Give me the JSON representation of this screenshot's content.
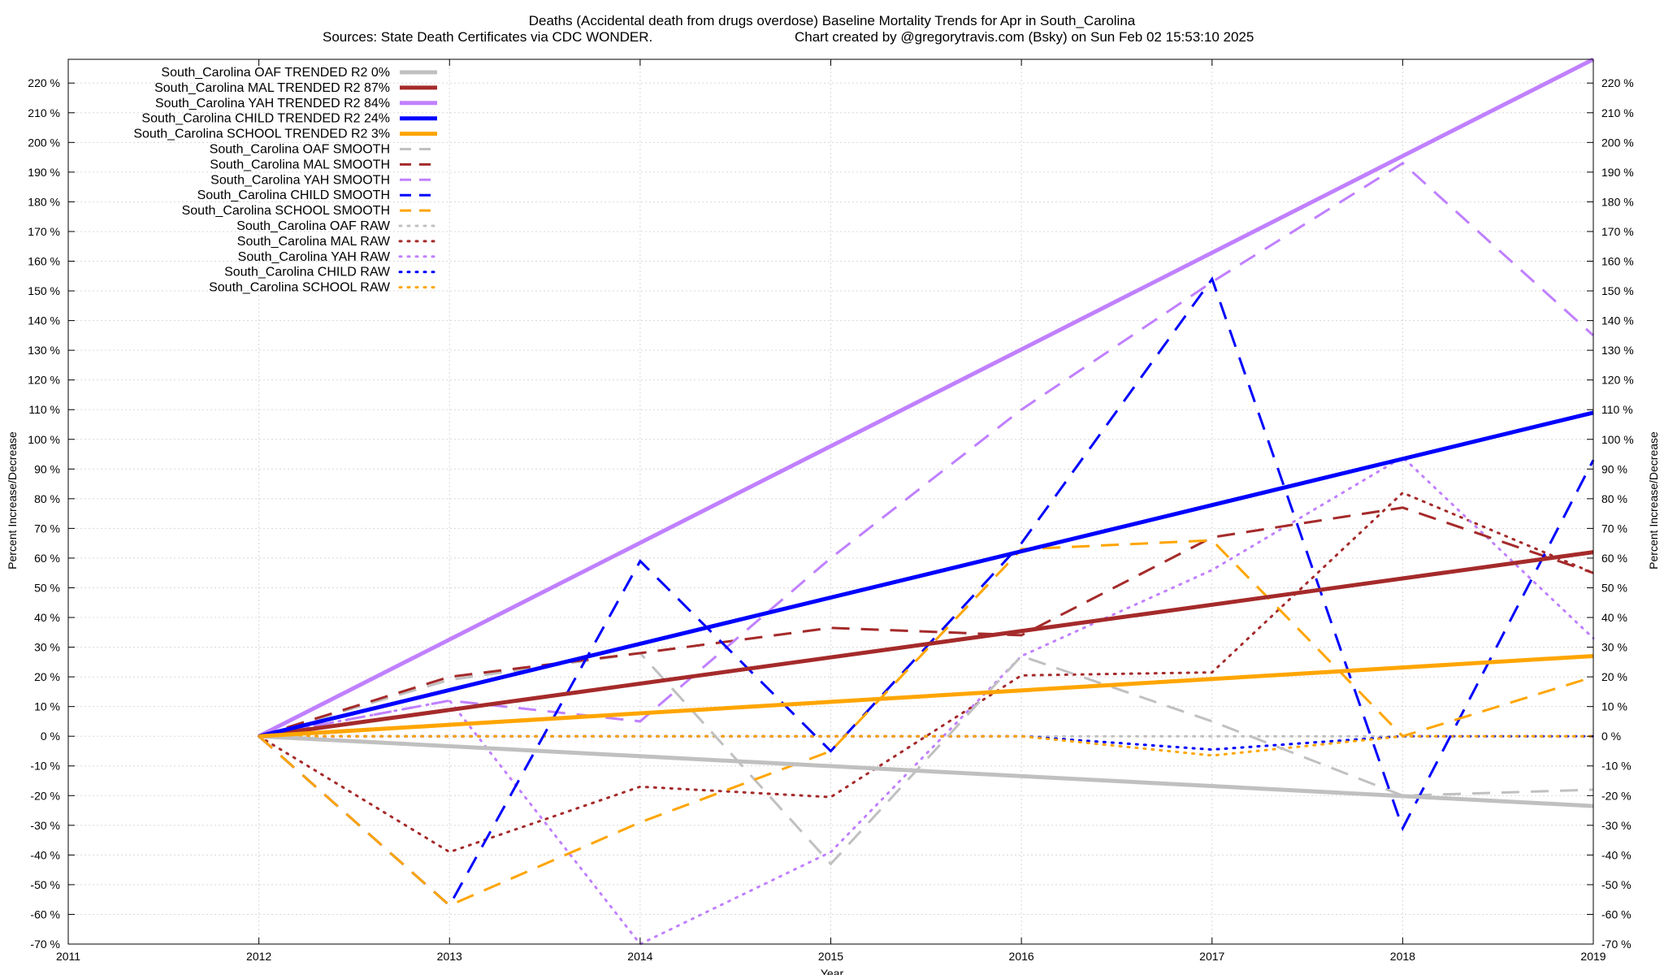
{
  "chart_data": {
    "type": "line",
    "title": "Deaths (Accidental death from drugs overdose)  Baseline Mortality Trends for Apr in South_Carolina",
    "subtitle_left": "Sources: State Death Certificates via CDC WONDER.",
    "subtitle_right": "Chart created by @gregorytravis.com (Bsky) on Sun Feb 02 15:53:10 2025",
    "xlabel": "Year",
    "ylabel": "Percent Increase/Decrease",
    "xlim": [
      2011,
      2019
    ],
    "ylim": [
      -70,
      228
    ],
    "x_ticks": [
      2011,
      2012,
      2013,
      2014,
      2015,
      2016,
      2017,
      2018,
      2019
    ],
    "x_tick_labels": [
      "2011",
      "2012",
      "2013",
      "2014",
      "2015",
      "2016",
      "2017",
      "2018",
      "2019"
    ],
    "y_ticks": [
      -70,
      -60,
      -50,
      -40,
      -30,
      -20,
      -10,
      0,
      10,
      20,
      30,
      40,
      50,
      60,
      70,
      80,
      90,
      100,
      110,
      120,
      130,
      140,
      150,
      160,
      170,
      180,
      190,
      200,
      210,
      220
    ],
    "y_tick_labels": [
      "-70 %",
      "-60 %",
      "-50 %",
      "-40 %",
      "-30 %",
      "-20 %",
      "-10 %",
      "0 %",
      "10 %",
      "20 %",
      "30 %",
      "40 %",
      "50 %",
      "60 %",
      "70 %",
      "80 %",
      "90 %",
      "100 %",
      "110 %",
      "120 %",
      "130 %",
      "140 %",
      "150 %",
      "160 %",
      "170 %",
      "180 %",
      "190 %",
      "200 %",
      "210 %",
      "220 %"
    ],
    "grid": true,
    "legend_position": "top-left",
    "series": [
      {
        "name": "South_Carolina OAF TRENDED R2   0%",
        "color": "#c0c0c0",
        "style": "solid",
        "x": [
          2012,
          2019
        ],
        "values": [
          0,
          -23.5
        ]
      },
      {
        "name": "South_Carolina MAL TRENDED R2  87%",
        "color": "#a52a2a",
        "style": "solid",
        "x": [
          2012,
          2019
        ],
        "values": [
          0,
          62
        ]
      },
      {
        "name": "South_Carolina YAH TRENDED R2  84%",
        "color": "#c080ff",
        "style": "solid",
        "x": [
          2012,
          2019
        ],
        "values": [
          0,
          228
        ]
      },
      {
        "name": "South_Carolina CHILD TRENDED R2  24%",
        "color": "#0000ff",
        "style": "solid",
        "x": [
          2012,
          2019
        ],
        "values": [
          0,
          109
        ]
      },
      {
        "name": "South_Carolina SCHOOL TRENDED R2   3%",
        "color": "#ffa500",
        "style": "solid",
        "x": [
          2012,
          2019
        ],
        "values": [
          0,
          27
        ]
      },
      {
        "name": "South_Carolina OAF SMOOTH",
        "color": "#c0c0c0",
        "style": "dashed",
        "x": [
          2012,
          2013,
          2014,
          2015,
          2016,
          2017,
          2018,
          2019
        ],
        "values": [
          0,
          19,
          28,
          -43,
          27,
          5,
          -20,
          -18
        ]
      },
      {
        "name": "South_Carolina MAL SMOOTH",
        "color": "#a52a2a",
        "style": "dashed",
        "x": [
          2012,
          2013,
          2014,
          2015,
          2016,
          2017,
          2018,
          2019
        ],
        "values": [
          0,
          20,
          28,
          36.5,
          34,
          67,
          77,
          55
        ]
      },
      {
        "name": "South_Carolina YAH SMOOTH",
        "color": "#c080ff",
        "style": "dashed",
        "x": [
          2012,
          2013,
          2014,
          2015,
          2016,
          2017,
          2018,
          2019
        ],
        "values": [
          0,
          12,
          5,
          60,
          110,
          153,
          193,
          135
        ]
      },
      {
        "name": "South_Carolina CHILD SMOOTH",
        "color": "#0000ff",
        "style": "dashed",
        "x": [
          2012,
          2013,
          2014,
          2015,
          2016,
          2017,
          2018,
          2019
        ],
        "values": [
          0,
          -57,
          59,
          -5,
          65,
          154,
          -31,
          93
        ]
      },
      {
        "name": "South_Carolina SCHOOL SMOOTH",
        "color": "#ffa500",
        "style": "dashed",
        "x": [
          2012,
          2013,
          2014,
          2015,
          2016,
          2017,
          2018,
          2019
        ],
        "values": [
          0,
          -57,
          -29,
          -5,
          63,
          66,
          0,
          20
        ]
      },
      {
        "name": "South_Carolina OAF RAW",
        "color": "#c0c0c0",
        "style": "dotted",
        "x": [
          2012,
          2013,
          2014,
          2015,
          2016,
          2017,
          2018,
          2019
        ],
        "values": [
          0,
          0,
          0,
          0,
          0,
          0,
          0,
          0
        ]
      },
      {
        "name": "South_Carolina MAL RAW",
        "color": "#a52a2a",
        "style": "dotted",
        "x": [
          2012,
          2013,
          2014,
          2015,
          2016,
          2017,
          2018,
          2019
        ],
        "values": [
          0,
          -39,
          -17,
          -20.5,
          20.5,
          21.5,
          82,
          55
        ]
      },
      {
        "name": "South_Carolina YAH RAW",
        "color": "#c080ff",
        "style": "dotted",
        "x": [
          2012,
          2013,
          2014,
          2015,
          2016,
          2017,
          2018,
          2019
        ],
        "values": [
          0,
          12,
          -70,
          -39,
          27,
          56,
          94,
          33
        ]
      },
      {
        "name": "South_Carolina CHILD RAW",
        "color": "#0000ff",
        "style": "dotted",
        "x": [
          2012,
          2013,
          2014,
          2015,
          2016,
          2017,
          2018,
          2019
        ],
        "values": [
          0,
          0,
          0,
          0,
          0,
          -4.5,
          0,
          0
        ]
      },
      {
        "name": "South_Carolina SCHOOL RAW",
        "color": "#ffa500",
        "style": "dotted",
        "x": [
          2012,
          2013,
          2014,
          2015,
          2016,
          2017,
          2018,
          2019
        ],
        "values": [
          0,
          0,
          0,
          0,
          0,
          -6.5,
          0,
          0
        ]
      }
    ]
  }
}
